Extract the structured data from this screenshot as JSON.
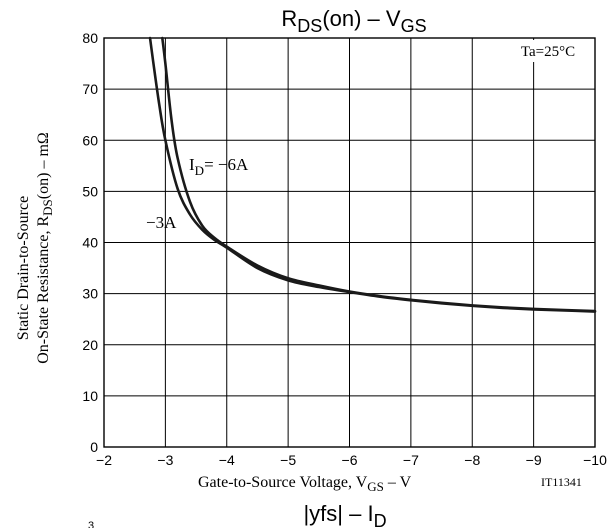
{
  "chart_data": {
    "type": "line",
    "title": "RDS(on) – VGS",
    "title_main_1": "R",
    "title_sub_1": "DS",
    "title_main_2": "(on)  –  V",
    "title_sub_2": "GS",
    "xlabel_main": "Gate-to-Source Voltage, V",
    "xlabel_sub": "GS",
    "xlabel_tail": "  –  V",
    "ylabel_line1": "Static Drain-to-Source",
    "ylabel_line2_main": "On-State Resistance, R",
    "ylabel_line2_sub": "DS",
    "ylabel_line2_tail": "(on)  –  mΩ",
    "figure_id": "IT11341",
    "condition_label": "Ta=25°C",
    "xlim": [
      -2,
      -10
    ],
    "ylim": [
      0,
      80
    ],
    "x_ticks": [
      -2,
      -3,
      -4,
      -5,
      -6,
      -7,
      -8,
      -9,
      -10
    ],
    "x_tick_labels": [
      "−2",
      "−3",
      "−4",
      "−5",
      "−6",
      "−7",
      "−8",
      "−9",
      "−10"
    ],
    "y_ticks": [
      0,
      10,
      20,
      30,
      40,
      50,
      60,
      70,
      80
    ],
    "y_tick_labels": [
      "0",
      "10",
      "20",
      "30",
      "40",
      "50",
      "60",
      "70",
      "80"
    ],
    "grid": true,
    "series": [
      {
        "name": "ID= −6A",
        "label_main": "I",
        "label_sub": "D",
        "label_tail": "= −6A",
        "x": [
          -2.95,
          -3.0,
          -3.1,
          -3.2,
          -3.4,
          -3.6,
          -3.8,
          -4.0,
          -4.5,
          -5.0,
          -5.5,
          -6.0,
          -6.5,
          -7.0,
          -7.5,
          -8.0,
          -8.5,
          -9.0,
          -9.5,
          -10.0
        ],
        "y": [
          80,
          75,
          64,
          56.5,
          48,
          43.3,
          40.9,
          39.2,
          35.5,
          33.0,
          31.6,
          30.4,
          29.5,
          28.8,
          28.2,
          27.7,
          27.3,
          27.0,
          26.8,
          26.6
        ]
      },
      {
        "name": "−3A",
        "label_main": "−3A",
        "x": [
          -2.75,
          -2.8,
          -2.9,
          -3.0,
          -3.2,
          -3.4,
          -3.6,
          -3.8,
          -4.0,
          -4.5,
          -5.0,
          -5.5,
          -6.0,
          -6.5,
          -7.0,
          -7.5,
          -8.0,
          -8.5,
          -9.0,
          -9.5,
          -10.0
        ],
        "y": [
          80,
          75.5,
          67,
          60,
          50.5,
          45.5,
          42.5,
          40.5,
          39.0,
          35.0,
          32.6,
          31.3,
          30.3,
          29.4,
          28.7,
          28.1,
          27.6,
          27.2,
          26.9,
          26.7,
          26.5
        ]
      }
    ],
    "next_chart_title": "|yfs| – ID",
    "next_chart_title_main": "|yfs|  –  I",
    "next_chart_title_sub": "D",
    "next_chart_partial_label": "3"
  },
  "colors": {
    "curve": "#1a1a1a",
    "grid": "#000000",
    "text": "#000000"
  }
}
